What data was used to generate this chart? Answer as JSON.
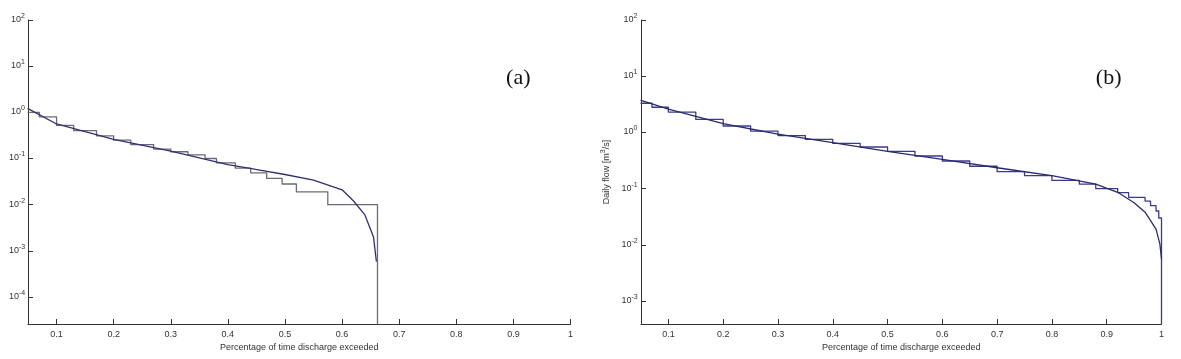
{
  "chart_data": [
    {
      "type": "line",
      "xlabel": "Percentage of time discharge exceeded",
      "annotations": [
        "(a)"
      ],
      "log": "y",
      "grid": false,
      "marker": "none",
      "line_style": "solid",
      "xlim": [
        0.05,
        1
      ],
      "xticks": [
        0.1,
        0.2,
        0.3,
        0.4,
        0.5,
        0.6,
        0.7,
        0.8,
        0.9,
        1
      ],
      "ylim": [
        2.6e-05,
        100
      ],
      "yticks": [
        {
          "value": 0.0001,
          "label": "10$^{-4}$"
        },
        {
          "value": 0.001,
          "label": "10$^{-3}$"
        },
        {
          "value": 0.01,
          "label": "10$^{-2}$"
        },
        {
          "value": 0.1,
          "label": "10$^{-1}$"
        },
        {
          "value": 1,
          "label": "10$^{0}$"
        },
        {
          "value": 10,
          "label": "10$^{1}$"
        },
        {
          "value": 100,
          "label": "10$^{2}$"
        }
      ],
      "series": [
        {
          "type": "step",
          "color": "#6b6b78",
          "x": [
            0.05,
            0.07,
            0.1,
            0.13,
            0.17,
            0.2,
            0.23,
            0.27,
            0.3,
            0.33,
            0.36,
            0.38,
            0.413,
            0.44,
            0.468,
            0.495,
            0.52,
            0.575,
            0.662
          ],
          "values": [
            1.0,
            0.8,
            0.52,
            0.4,
            0.31,
            0.25,
            0.2,
            0.16,
            0.14,
            0.12,
            0.1,
            0.08,
            0.062,
            0.049,
            0.037,
            0.028,
            0.019,
            0.01,
            2.6e-05
          ]
        },
        {
          "type": "line",
          "color": "#303070",
          "x": [
            0.05,
            0.1,
            0.2,
            0.3,
            0.4,
            0.5,
            0.55,
            0.6,
            0.62,
            0.64,
            0.655,
            0.66
          ],
          "values": [
            1.2,
            0.56,
            0.26,
            0.145,
            0.074,
            0.045,
            0.034,
            0.021,
            0.012,
            0.006,
            0.002,
            0.0006
          ]
        }
      ]
    },
    {
      "type": "line",
      "xlabel": "Percentage of time discharge exceeded",
      "ylabel": "Daily flow [m$^{3}$/s]",
      "annotations": [
        "(b)"
      ],
      "log": "y",
      "grid": false,
      "marker": "none",
      "line_style": "solid",
      "xlim": [
        0.05,
        1
      ],
      "xticks": [
        0.1,
        0.2,
        0.3,
        0.4,
        0.5,
        0.6,
        0.7,
        0.8,
        0.9,
        1
      ],
      "ylim": [
        0.00039,
        100
      ],
      "yticks": [
        {
          "value": 0.001,
          "label": "10$^{-3}$"
        },
        {
          "value": 0.01,
          "label": "10$^{-2}$"
        },
        {
          "value": 0.1,
          "label": "10$^{-1}$"
        },
        {
          "value": 1,
          "label": "10$^{0}$"
        },
        {
          "value": 10,
          "label": "10$^{1}$"
        },
        {
          "value": 100,
          "label": "10$^{2}$"
        }
      ],
      "series": [
        {
          "type": "step",
          "color": "#3b3b8a",
          "x": [
            0.05,
            0.07,
            0.1,
            0.15,
            0.2,
            0.25,
            0.3,
            0.35,
            0.4,
            0.45,
            0.5,
            0.55,
            0.6,
            0.65,
            0.7,
            0.75,
            0.8,
            0.85,
            0.88,
            0.92,
            0.94,
            0.97,
            0.98,
            0.99,
            0.995,
            1.0
          ],
          "values": [
            3.3,
            2.8,
            2.3,
            1.7,
            1.3,
            1.05,
            0.88,
            0.75,
            0.64,
            0.55,
            0.46,
            0.38,
            0.31,
            0.25,
            0.2,
            0.17,
            0.14,
            0.12,
            0.1,
            0.085,
            0.07,
            0.06,
            0.05,
            0.04,
            0.03,
            0.00039
          ]
        },
        {
          "type": "line",
          "color": "#2a2a6e",
          "x": [
            0.05,
            0.1,
            0.2,
            0.3,
            0.4,
            0.5,
            0.6,
            0.7,
            0.8,
            0.88,
            0.92,
            0.95,
            0.97,
            0.99,
            0.997,
            1.0
          ],
          "values": [
            3.7,
            2.6,
            1.43,
            0.93,
            0.66,
            0.46,
            0.33,
            0.235,
            0.17,
            0.12,
            0.086,
            0.056,
            0.038,
            0.019,
            0.0104,
            0.0056
          ]
        }
      ]
    }
  ]
}
